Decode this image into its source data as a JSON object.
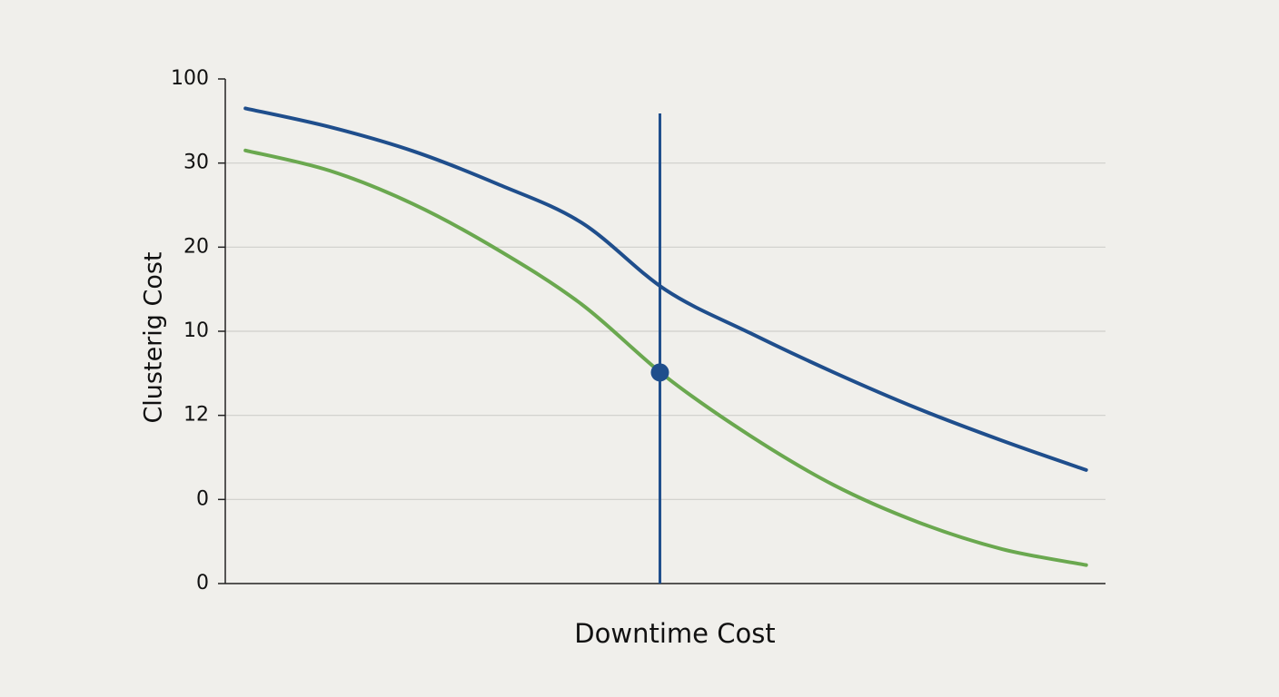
{
  "chart_data": {
    "type": "line",
    "x_label": "Downtime Cost",
    "y_label": "Clusterig Cost",
    "x": [
      0,
      1,
      2,
      3,
      4,
      5,
      6,
      7,
      8,
      9,
      10
    ],
    "xlim": [
      -0.24,
      10.23
    ],
    "ylim": [
      0,
      6
    ],
    "yticks": [
      {
        "value": 0,
        "label": "0"
      },
      {
        "value": 1,
        "label": "0"
      },
      {
        "value": 2,
        "label": "12"
      },
      {
        "value": 3,
        "label": "10"
      },
      {
        "value": 4,
        "label": "20"
      },
      {
        "value": 5,
        "label": "30"
      },
      {
        "value": 6,
        "label": "100"
      }
    ],
    "grid": true,
    "series": [
      {
        "color": "#1f4e8c",
        "values": [
          5.65,
          5.43,
          5.14,
          4.75,
          4.29,
          3.49,
          2.98,
          2.51,
          2.08,
          1.7,
          1.35
        ]
      },
      {
        "color": "#6aa84f",
        "values": [
          5.15,
          4.91,
          4.51,
          3.97,
          3.32,
          2.46,
          1.76,
          1.17,
          0.73,
          0.41,
          0.22
        ]
      }
    ],
    "vline": {
      "x": 4.93,
      "top": 5.59,
      "color": "#1f4e8c"
    },
    "marker": {
      "x": 4.93,
      "y": 2.51,
      "color": "#1f4e8c"
    }
  }
}
